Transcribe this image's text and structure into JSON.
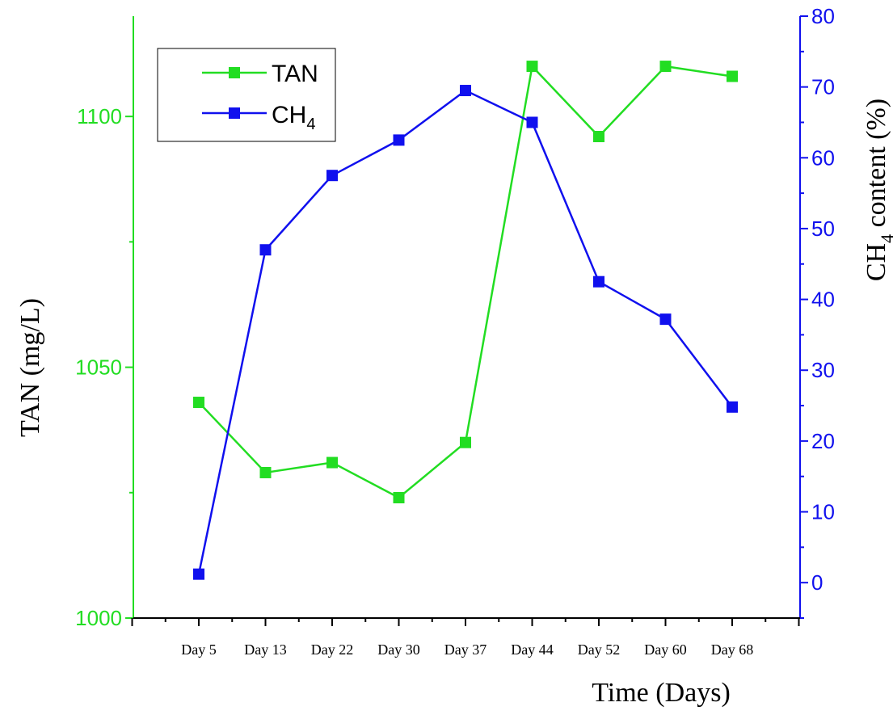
{
  "chart_data": {
    "type": "line",
    "categories": [
      "Day 5",
      "Day 13",
      "Day 22",
      "Day 30",
      "Day 37",
      "Day 44",
      "Day 52",
      "Day 60",
      "Day 68"
    ],
    "series": [
      {
        "name": "TAN",
        "axis": "left",
        "color": "#22dd22",
        "values": [
          1043,
          1029,
          1031,
          1024,
          1035,
          1110,
          1096,
          1110,
          1108
        ]
      },
      {
        "name": "CH",
        "name_subscript": "4",
        "axis": "right",
        "color": "#1010ee",
        "values": [
          1.2,
          47,
          57.5,
          62.5,
          69.5,
          65,
          42.5,
          37.2,
          24.8
        ]
      }
    ],
    "xlabel": "Time (Days)",
    "ylabel_left": "TAN (mg/L)",
    "ylabel_right": {
      "prefix": "CH",
      "subscript": "4",
      "suffix": " content (%)"
    },
    "ylim_left": [
      1000,
      1120
    ],
    "ylim_right": [
      -5,
      80
    ],
    "yticks_left": [
      1000,
      1050,
      1100
    ],
    "yticks_right": [
      0,
      10,
      20,
      30,
      40,
      50,
      60,
      70,
      80
    ],
    "left_axis_color": "#22dd22",
    "right_axis_color": "#1010ee",
    "legend_position": "top-left",
    "grid": false
  }
}
